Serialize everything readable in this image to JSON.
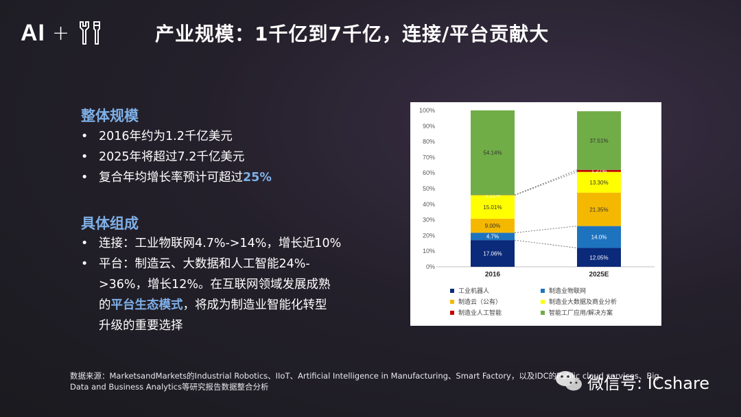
{
  "logo": {
    "text": "AI",
    "plus": "+"
  },
  "title": "产业规模：1千亿到7千亿，连接/平台贡献大",
  "overall": {
    "heading": "整体规模",
    "items": [
      "2016年约为1.2千亿美元",
      "2025年将超过7.2千亿美元"
    ],
    "item3_prefix": "复合年均增长率预计可超过",
    "item3_highlight": "25%"
  },
  "detail": {
    "heading": "具体组成",
    "item1": "连接：工业物联网4.7%->14%，增长近10%",
    "item2_line1": "平台：制造云、大数据和人工智能24%-",
    "item2_line2": ">36%，增长12%。在互联网领域发展成熟",
    "item2_line3_prefix": "的",
    "item2_line3_highlight": "平台生态模式",
    "item2_line3_suffix": "，将成为制造业智能化转型",
    "item2_line4": "升级的重要选择"
  },
  "source": {
    "line1": "数据来源：MarketsandMarkets的Industrial Robotics、IIoT、Artificial Intelligence in Manufacturing、Smart Factory，以及IDC的Public cloud services、Big",
    "line2": "Data and Business Analytics等研究报告数据整合分析"
  },
  "watermark": {
    "text": "微信号: ICshare"
  },
  "chart_data": {
    "type": "bar",
    "stacked": true,
    "categories": [
      "2016",
      "2025E"
    ],
    "ylim": [
      0,
      100
    ],
    "yticks": [
      "0%",
      "10%",
      "20%",
      "30%",
      "40%",
      "50%",
      "60%",
      "70%",
      "80%",
      "90%",
      "100%"
    ],
    "series": [
      {
        "name": "工业机器人",
        "color": "#0b2a7a",
        "values": [
          17.06,
          12.05
        ],
        "labels": [
          "17.06%",
          "12.05%"
        ]
      },
      {
        "name": "制造业物联网",
        "color": "#1e73be",
        "values": [
          4.7,
          14.0
        ],
        "labels": [
          "4.7%",
          "14.0%"
        ]
      },
      {
        "name": "制造云（公有）",
        "color": "#f5b800",
        "values": [
          9.0,
          21.35
        ],
        "labels": [
          "9.00%",
          "21.35%"
        ]
      },
      {
        "name": "制造业大数据及商业分析",
        "color": "#ffff00",
        "values": [
          15.01,
          13.3
        ],
        "labels": [
          "15.01%",
          "13.30%"
        ]
      },
      {
        "name": "制造业人工智能",
        "color": "#c00000",
        "values": [
          0.12,
          1.27
        ],
        "labels": [
          "0.12%",
          "1.27%"
        ]
      },
      {
        "name": "智能工厂应用/解决方案",
        "color": "#70ad47",
        "values": [
          54.14,
          37.51
        ],
        "labels": [
          "54.14%",
          "37.51%"
        ]
      }
    ],
    "legend_position": "bottom",
    "connectors": true
  }
}
